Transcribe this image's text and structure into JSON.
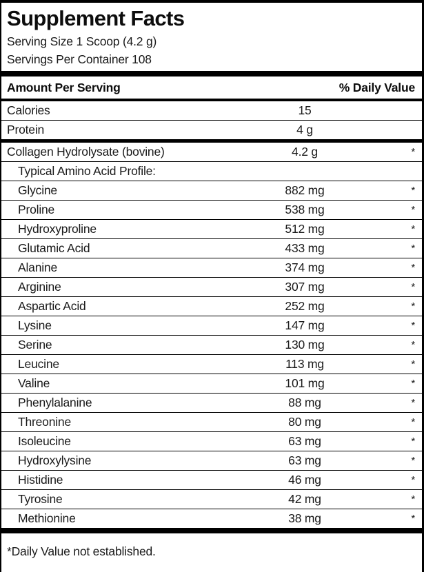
{
  "label": {
    "title": "Supplement Facts",
    "serving_size": "Serving Size 1 Scoop (4.2 g)",
    "servings_per_container": "Servings Per Container 108",
    "columns": {
      "amount_header": "Amount Per Serving",
      "dv_header": "% Daily Value"
    },
    "footnote": "*Daily Value not established.",
    "colors": {
      "text": "#1a1a1a",
      "rule": "#000000",
      "background": "#ffffff"
    },
    "rows": [
      {
        "name": "Calories",
        "amount": "15",
        "dv": "",
        "indent": 0,
        "thick_top": false
      },
      {
        "name": "Protein",
        "amount": "4 g",
        "dv": "",
        "indent": 0,
        "thick_top": false
      },
      {
        "name": "Collagen Hydrolysate (bovine)",
        "amount": "4.2 g",
        "dv": "*",
        "indent": 0,
        "thick_top": true
      },
      {
        "name": "Typical Amino Acid Profile:",
        "amount": "",
        "dv": "",
        "indent": 1,
        "thick_top": false
      },
      {
        "name": "Glycine",
        "amount": "882 mg",
        "dv": "*",
        "indent": 1,
        "thick_top": false
      },
      {
        "name": "Proline",
        "amount": "538 mg",
        "dv": "*",
        "indent": 1,
        "thick_top": false
      },
      {
        "name": "Hydroxyproline",
        "amount": "512 mg",
        "dv": "*",
        "indent": 1,
        "thick_top": false
      },
      {
        "name": "Glutamic Acid",
        "amount": "433 mg",
        "dv": "*",
        "indent": 1,
        "thick_top": false
      },
      {
        "name": "Alanine",
        "amount": "374 mg",
        "dv": "*",
        "indent": 1,
        "thick_top": false
      },
      {
        "name": "Arginine",
        "amount": "307 mg",
        "dv": "*",
        "indent": 1,
        "thick_top": false
      },
      {
        "name": "Aspartic Acid",
        "amount": "252 mg",
        "dv": "*",
        "indent": 1,
        "thick_top": false
      },
      {
        "name": "Lysine",
        "amount": "147 mg",
        "dv": "*",
        "indent": 1,
        "thick_top": false
      },
      {
        "name": "Serine",
        "amount": "130 mg",
        "dv": "*",
        "indent": 1,
        "thick_top": false
      },
      {
        "name": "Leucine",
        "amount": "113 mg",
        "dv": "*",
        "indent": 1,
        "thick_top": false
      },
      {
        "name": "Valine",
        "amount": "101 mg",
        "dv": "*",
        "indent": 1,
        "thick_top": false
      },
      {
        "name": "Phenylalanine",
        "amount": "88 mg",
        "dv": "*",
        "indent": 1,
        "thick_top": false
      },
      {
        "name": "Threonine",
        "amount": "80 mg",
        "dv": "*",
        "indent": 1,
        "thick_top": false
      },
      {
        "name": "Isoleucine",
        "amount": "63 mg",
        "dv": "*",
        "indent": 1,
        "thick_top": false
      },
      {
        "name": "Hydroxylysine",
        "amount": "63 mg",
        "dv": "*",
        "indent": 1,
        "thick_top": false
      },
      {
        "name": "Histidine",
        "amount": "46 mg",
        "dv": "*",
        "indent": 1,
        "thick_top": false
      },
      {
        "name": "Tyrosine",
        "amount": "42 mg",
        "dv": "*",
        "indent": 1,
        "thick_top": false
      },
      {
        "name": "Methionine",
        "amount": "38 mg",
        "dv": "*",
        "indent": 1,
        "thick_top": false
      }
    ]
  }
}
